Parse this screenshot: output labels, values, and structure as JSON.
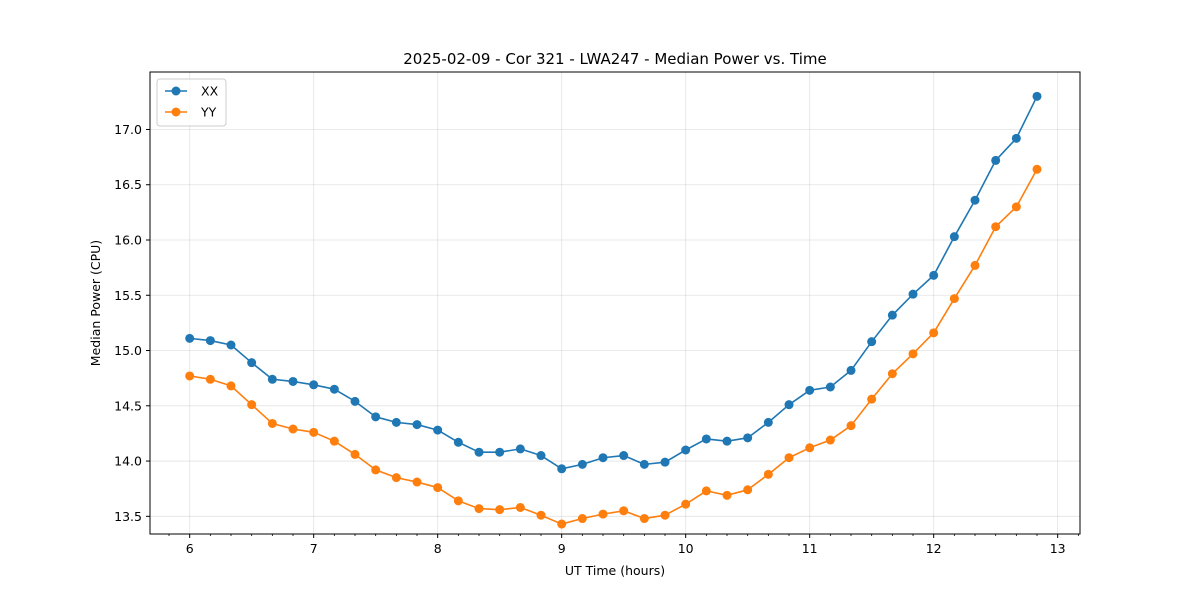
{
  "chart_data": {
    "type": "line",
    "title": "2025-02-09 - Cor 321 - LWA247 - Median Power vs. Time",
    "xlabel": "UT Time (hours)",
    "ylabel": "Median Power (CPU)",
    "xlim": [
      5.68,
      13.18
    ],
    "ylim": [
      13.34,
      17.52
    ],
    "xticks": [
      6,
      7,
      8,
      9,
      10,
      11,
      12,
      13
    ],
    "yticks": [
      13.5,
      14.0,
      14.5,
      15.0,
      15.5,
      16.0,
      16.5,
      17.0
    ],
    "ytick_labels": [
      "13.5",
      "14.0",
      "14.5",
      "15.0",
      "15.5",
      "16.0",
      "16.5",
      "17.0"
    ],
    "grid": true,
    "legend_position": "top-left",
    "x": [
      6.0,
      6.1667,
      6.3333,
      6.5,
      6.6667,
      6.8333,
      7.0,
      7.1667,
      7.3333,
      7.5,
      7.6667,
      7.8333,
      8.0,
      8.1667,
      8.3333,
      8.5,
      8.6667,
      8.8333,
      9.0,
      9.1667,
      9.3333,
      9.5,
      9.6667,
      9.8333,
      10.0,
      10.1667,
      10.3333,
      10.5,
      10.6667,
      10.8333,
      11.0,
      11.1667,
      11.3333,
      11.5,
      11.6667,
      11.8333,
      12.0,
      12.1667,
      12.3333,
      12.5,
      12.6667,
      12.8333
    ],
    "series": [
      {
        "name": "XX",
        "color": "#1f77b4",
        "values": [
          15.11,
          15.09,
          15.05,
          14.89,
          14.74,
          14.72,
          14.69,
          14.65,
          14.54,
          14.4,
          14.35,
          14.33,
          14.28,
          14.17,
          14.08,
          14.08,
          14.11,
          14.05,
          13.93,
          13.97,
          14.03,
          14.05,
          13.97,
          13.99,
          14.1,
          14.2,
          14.18,
          14.21,
          14.35,
          14.51,
          14.64,
          14.67,
          14.82,
          15.08,
          15.32,
          15.51,
          15.68,
          16.03,
          16.36,
          16.72,
          16.92,
          17.3
        ]
      },
      {
        "name": "YY",
        "color": "#ff7f0e",
        "values": [
          14.77,
          14.74,
          14.68,
          14.51,
          14.34,
          14.29,
          14.26,
          14.18,
          14.06,
          13.92,
          13.85,
          13.81,
          13.76,
          13.64,
          13.57,
          13.56,
          13.58,
          13.51,
          13.43,
          13.48,
          13.52,
          13.55,
          13.48,
          13.51,
          13.61,
          13.73,
          13.69,
          13.74,
          13.88,
          14.03,
          14.12,
          14.19,
          14.32,
          14.56,
          14.79,
          14.97,
          15.16,
          15.47,
          15.77,
          16.12,
          16.3,
          16.64
        ]
      }
    ]
  }
}
